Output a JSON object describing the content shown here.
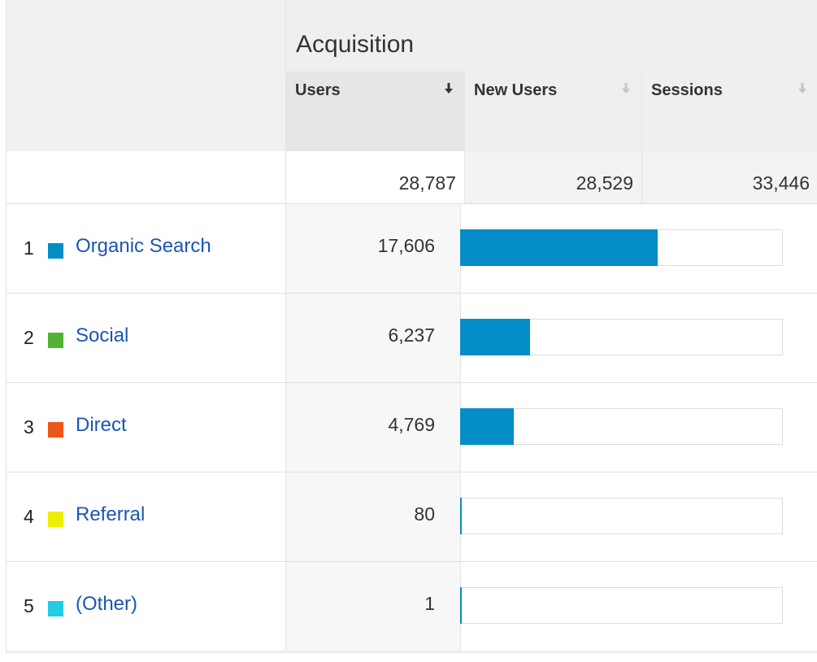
{
  "report": {
    "group_title": "Acquisition",
    "columns": [
      {
        "label": "Users",
        "sorted": true,
        "total": "28,787"
      },
      {
        "label": "New Users",
        "sorted": false,
        "total": "28,529"
      },
      {
        "label": "Sessions",
        "sorted": false,
        "total": "33,446"
      }
    ],
    "rows": [
      {
        "index": "1",
        "channel": "Organic Search",
        "color": "#058dc7",
        "users": "17,606",
        "share": 0.612
      },
      {
        "index": "2",
        "channel": "Social",
        "color": "#50b432",
        "users": "6,237",
        "share": 0.217
      },
      {
        "index": "3",
        "channel": "Direct",
        "color": "#ed561b",
        "users": "4,769",
        "share": 0.166
      },
      {
        "index": "4",
        "channel": "Referral",
        "color": "#edef00",
        "users": "80",
        "share": 0.003
      },
      {
        "index": "5",
        "channel": "(Other)",
        "color": "#24cbe5",
        "users": "1",
        "share": 0.0
      }
    ],
    "colors": {
      "bar": "#058dc7",
      "link": "#1a56b5"
    },
    "icons": {
      "sort_active": "sort-down-arrow-icon",
      "sort_inactive": "sort-down-arrow-faded-icon"
    }
  }
}
